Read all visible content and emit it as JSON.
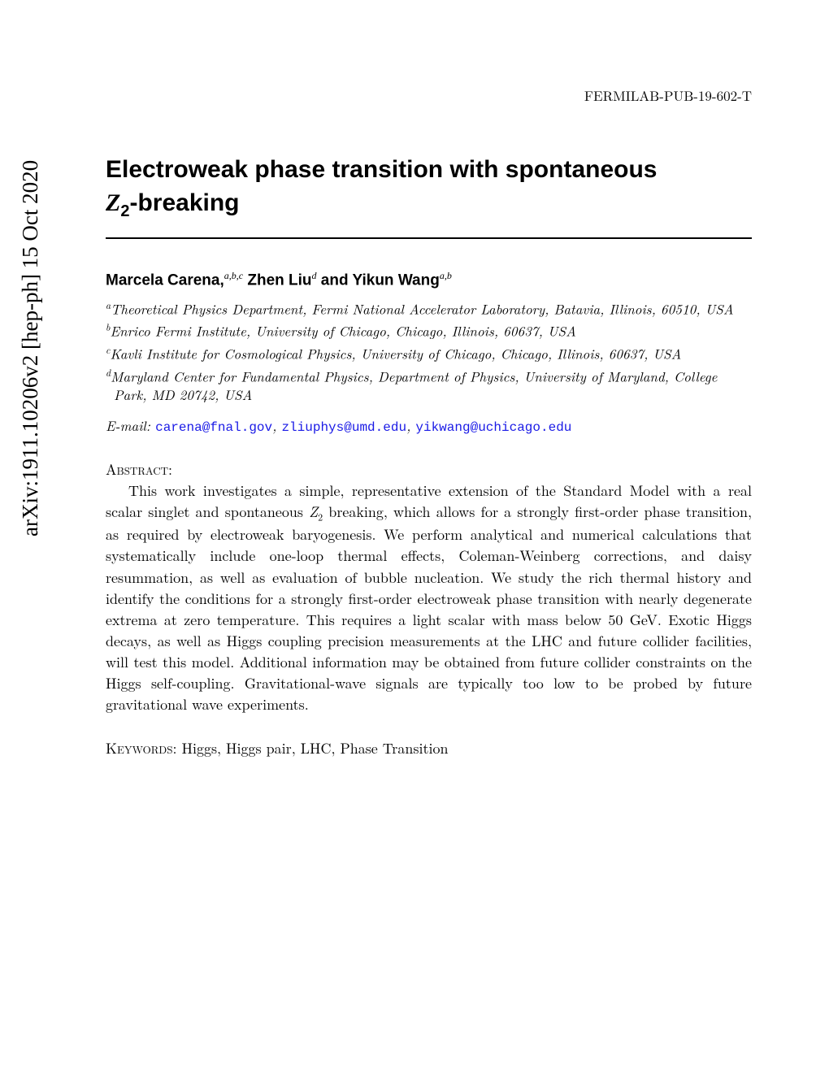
{
  "arxiv_stamp": "arXiv:1911.10206v2  [hep-ph]  15 Oct 2020",
  "report_number": "FERMILAB-PUB-19-602-T",
  "title_line1": "Electroweak phase transition with spontaneous",
  "title_z": "Z",
  "title_sub": "2",
  "title_line2_rest": "-breaking",
  "authors": {
    "a1_name": "Marcela Carena,",
    "a1_sup": "a,b,c",
    "a2_name": " Zhen Liu",
    "a2_sup": "d",
    "and": " and ",
    "a3_name": "Yikun Wang",
    "a3_sup": "a,b"
  },
  "affiliations": [
    {
      "sup": "a",
      "text": "Theoretical Physics Department, Fermi National Accelerator Laboratory, Batavia, Illinois, 60510, USA"
    },
    {
      "sup": "b",
      "text": "Enrico Fermi Institute, University of Chicago, Chicago, Illinois, 60637, USA"
    },
    {
      "sup": "c",
      "text": "Kavli Institute for Cosmological Physics, University of Chicago, Chicago, Illinois, 60637, USA"
    },
    {
      "sup": "d",
      "text": "Maryland Center for Fundamental Physics, Department of Physics, University of Maryland, College Park, MD 20742, USA"
    }
  ],
  "email_label": "E-mail: ",
  "emails": [
    "carena@fnal.gov",
    "zliuphys@umd.edu",
    "yikwang@uchicago.edu"
  ],
  "abstract_label": "Abstract:",
  "abstract_p1a": "This work investigates a simple, representative extension of the Standard Model with a real scalar singlet and spontaneous ",
  "abstract_z": "Z",
  "abstract_sub": "2",
  "abstract_p1b": " breaking, which allows for a strongly first-order phase transition, as required by electroweak baryogenesis. We perform analytical and numerical calculations that systematically include one-loop thermal effects, Coleman-Weinberg corrections, and daisy resummation, as well as evaluation of bubble nucleation. We study the rich thermal history and identify the conditions for a strongly first-order electroweak phase transition with nearly degenerate extrema at zero temperature. This requires a light scalar with mass below 50 GeV. Exotic Higgs decays, as well as Higgs coupling precision measurements at the LHC and future collider facilities, will test this model. Additional information may be obtained from future collider constraints on the Higgs self-coupling. Gravitational-wave signals are typically too low to be probed by future gravitational wave experiments.",
  "keywords_label": "Keywords: ",
  "keywords": "Higgs, Higgs pair, LHC, Phase Transition",
  "colors": {
    "link": "#1a1ae6",
    "text": "#000000",
    "background": "#ffffff"
  }
}
